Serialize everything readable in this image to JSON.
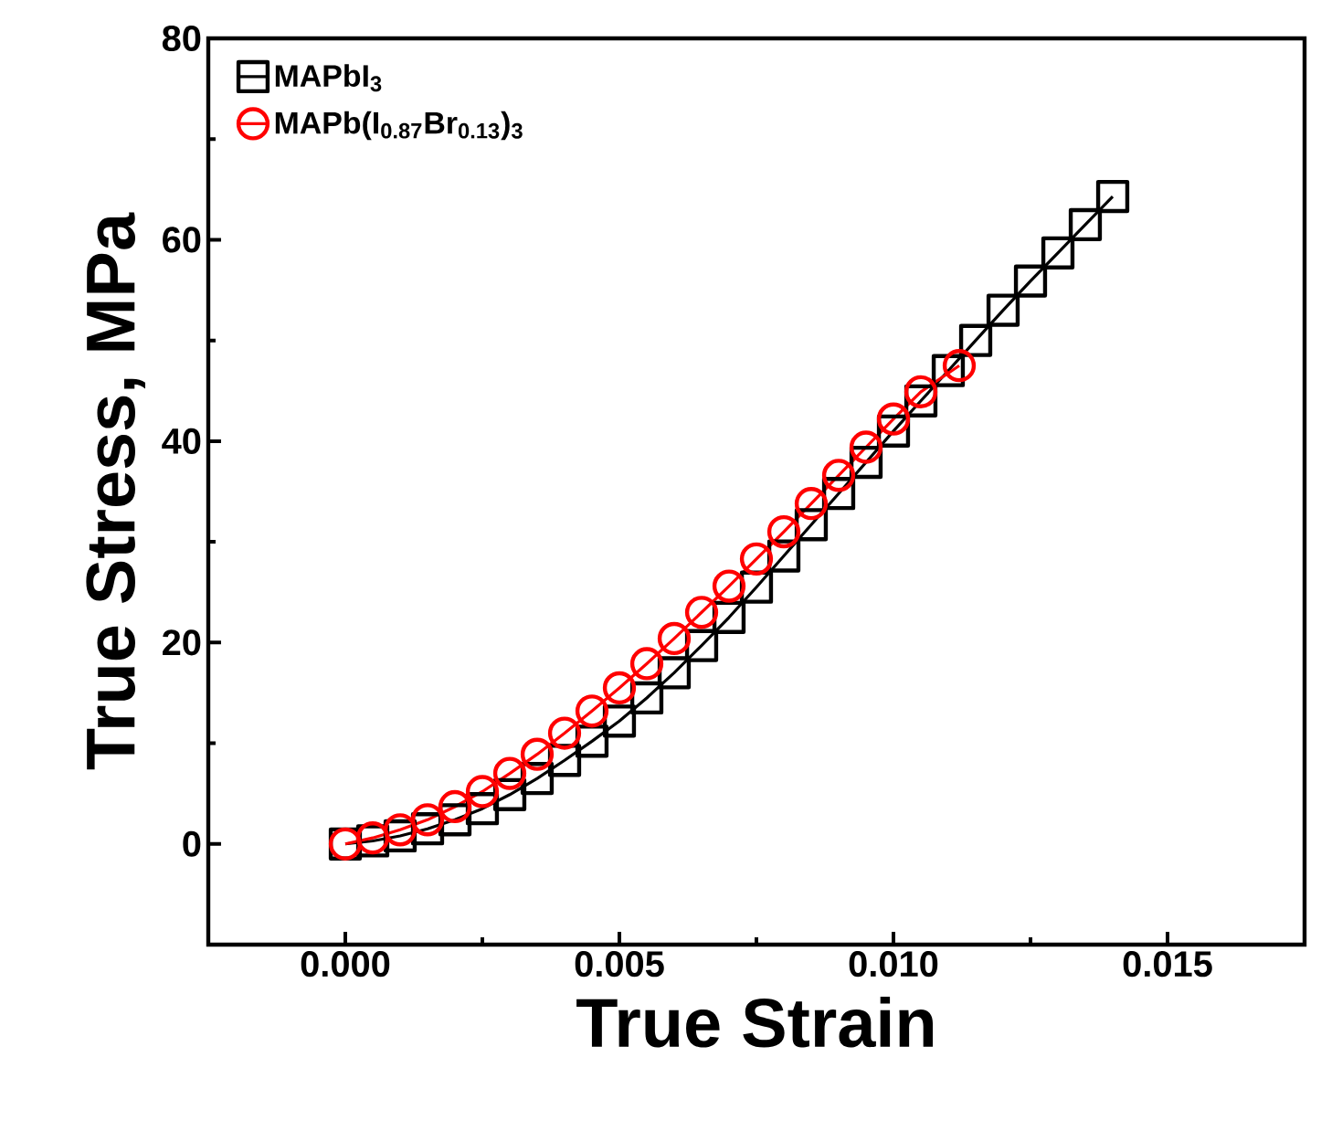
{
  "chart_data": {
    "type": "line",
    "xlabel": "True Strain",
    "ylabel": "True Stress, MPa",
    "xlim": [
      -0.0025,
      0.0175
    ],
    "ylim": [
      -10,
      80
    ],
    "xticks": [
      {
        "value": 0,
        "label": "0.000"
      },
      {
        "value": 0.005,
        "label": "0.005"
      },
      {
        "value": 0.01,
        "label": "0.010"
      },
      {
        "value": 0.015,
        "label": "0.015"
      }
    ],
    "yticks": [
      0,
      20,
      40,
      60,
      80
    ],
    "legend": "top left",
    "grid": false,
    "series": [
      {
        "name": "MAPbI$_{3}$",
        "color": "#000000",
        "marker": "square",
        "x": [
          0,
          0.0005,
          0.001,
          0.0015,
          0.002,
          0.0025,
          0.003,
          0.0035,
          0.004,
          0.0045,
          0.005,
          0.0055,
          0.006,
          0.0065,
          0.007,
          0.0075,
          0.008,
          0.0085,
          0.009,
          0.0095,
          0.01,
          0.0105,
          0.011,
          0.0115,
          0.012,
          0.0125,
          0.013,
          0.0135,
          0.014
        ],
        "values": [
          0,
          0.3,
          0.8,
          1.5,
          2.4,
          3.5,
          4.9,
          6.5,
          8.3,
          10.2,
          12.2,
          14.5,
          17.0,
          19.7,
          22.5,
          25.5,
          28.6,
          31.7,
          34.8,
          37.9,
          41.0,
          44.0,
          47.0,
          50.0,
          53.0,
          55.9,
          58.7,
          61.5,
          64.3
        ]
      },
      {
        "name": "MAPb(I$_{0.87}$Br$_{0.13}$)$_{3}$",
        "color": "#ff0000",
        "marker": "circle",
        "x": [
          0,
          0.0005,
          0.001,
          0.0015,
          0.002,
          0.0025,
          0.003,
          0.0035,
          0.004,
          0.0045,
          0.005,
          0.0055,
          0.006,
          0.0065,
          0.007,
          0.0075,
          0.008,
          0.0085,
          0.009,
          0.0095,
          0.01,
          0.0105,
          0.0112
        ],
        "values": [
          0,
          0.6,
          1.4,
          2.4,
          3.7,
          5.2,
          7.0,
          8.9,
          11.0,
          13.2,
          15.5,
          17.9,
          20.4,
          23.0,
          25.6,
          28.3,
          31.0,
          33.8,
          36.6,
          39.4,
          42.2,
          44.9,
          47.5
        ]
      }
    ]
  }
}
